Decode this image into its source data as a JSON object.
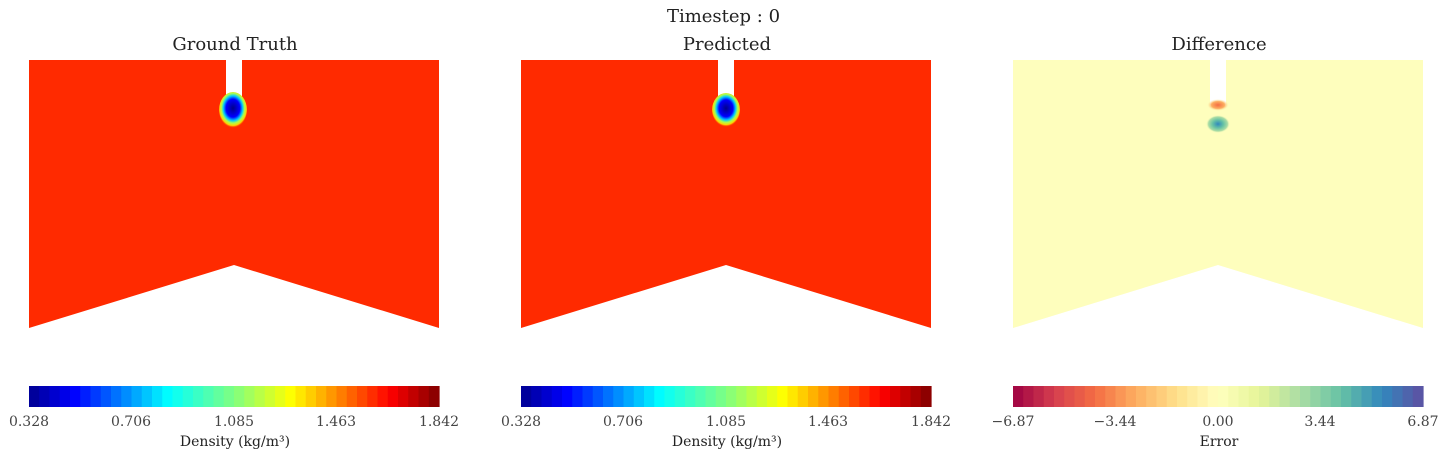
{
  "figure": {
    "suptitle": "Timestep : 0"
  },
  "panels": [
    {
      "title": "Ground Truth",
      "colorbar_label": "Density (kg/m³)",
      "ticks": [
        "0.328",
        "0.706",
        "1.085",
        "1.463",
        "1.842"
      ],
      "colormap": "jet",
      "fill": "#ff2a00"
    },
    {
      "title": "Predicted",
      "colorbar_label": "Density (kg/m³)",
      "ticks": [
        "0.328",
        "0.706",
        "1.085",
        "1.463",
        "1.842"
      ],
      "colormap": "jet",
      "fill": "#ff2a00"
    },
    {
      "title": "Difference",
      "colorbar_label": "Error",
      "ticks": [
        "−6.87",
        "−3.44",
        "0.00",
        "3.44",
        "6.87"
      ],
      "colormap": "Spectral",
      "fill": "#fefebd"
    }
  ],
  "chart_data": [
    {
      "type": "heatmap",
      "title": "Ground Truth",
      "colorbar_label": "Density (kg/m³)",
      "colorbar_range": [
        0.328,
        1.842
      ],
      "colorbar_ticks": [
        0.328,
        0.706,
        1.085,
        1.463,
        1.842
      ],
      "background_value": 1.7,
      "feature_min": 0.328
    },
    {
      "type": "heatmap",
      "title": "Predicted",
      "colorbar_label": "Density (kg/m³)",
      "colorbar_range": [
        0.328,
        1.842
      ],
      "colorbar_ticks": [
        0.328,
        0.706,
        1.085,
        1.463,
        1.842
      ],
      "background_value": 1.7,
      "feature_min": 0.328
    },
    {
      "type": "heatmap",
      "title": "Difference",
      "colorbar_label": "Error",
      "colorbar_range": [
        -6.87,
        6.87
      ],
      "colorbar_ticks": [
        -6.87,
        -3.44,
        0.0,
        3.44,
        6.87
      ],
      "background_value": 0.0
    }
  ]
}
